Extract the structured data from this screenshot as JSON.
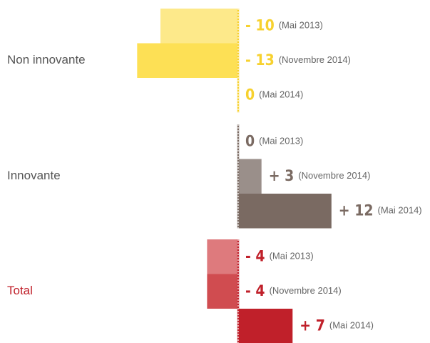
{
  "chart_data": {
    "type": "bar",
    "orientation": "horizontal",
    "categories": [
      "Non innovante",
      "Innovante",
      "Total"
    ],
    "category_colors": [
      "#555555",
      "#555555",
      "#c0202a"
    ],
    "value_label_colors": [
      "#f7d12e",
      "#7a6a62",
      "#c0202a"
    ],
    "series": [
      {
        "name": "(Mai 2013)",
        "colors": [
          "#fde98a",
          "#aaa19c",
          "#de7a7d"
        ],
        "values": [
          -10,
          0,
          -4
        ],
        "value_labels": [
          "- 10",
          "0",
          "- 4"
        ]
      },
      {
        "name": "(Novembre 2014)",
        "colors": [
          "#fde055",
          "#9a8f8a",
          "#d04c50"
        ],
        "values": [
          -13,
          3,
          -4
        ],
        "value_labels": [
          "- 13",
          "+ 3",
          "- 4"
        ]
      },
      {
        "name": "(Mai 2014)",
        "colors": [
          "#fdd835",
          "#7a6a62",
          "#c0202a"
        ],
        "values": [
          0,
          12,
          7
        ],
        "value_labels": [
          "0",
          "+ 12",
          "+ 7"
        ]
      }
    ]
  }
}
